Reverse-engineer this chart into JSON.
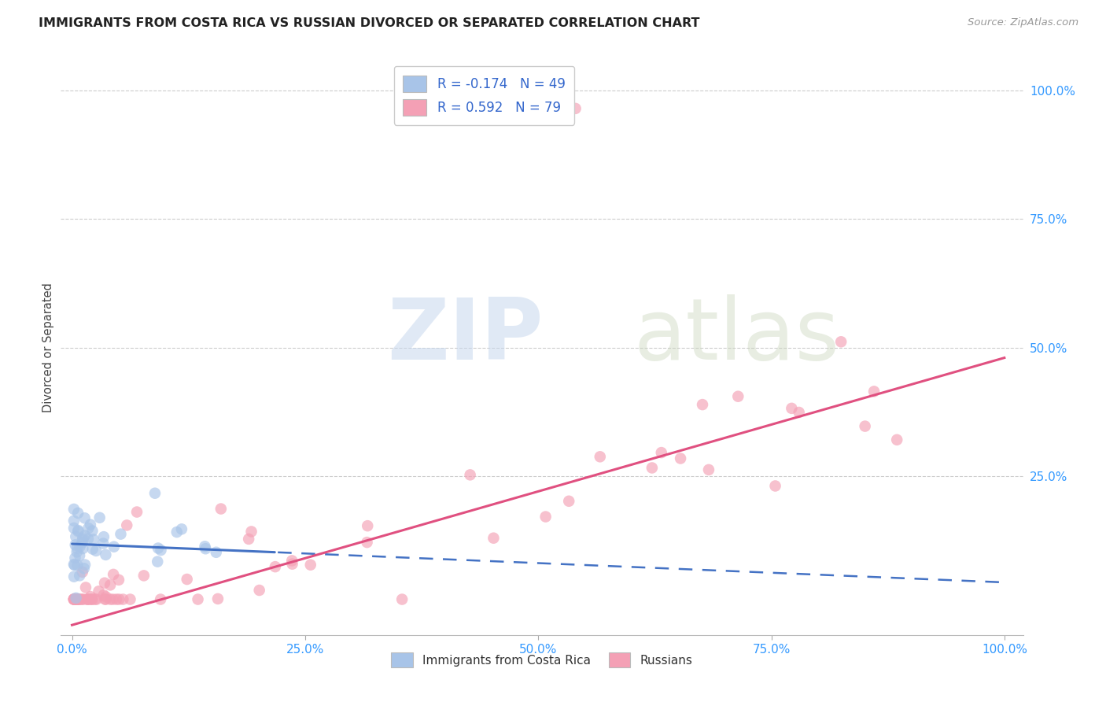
{
  "title": "IMMIGRANTS FROM COSTA RICA VS RUSSIAN DIVORCED OR SEPARATED CORRELATION CHART",
  "source": "Source: ZipAtlas.com",
  "ylabel": "Divorced or Separated",
  "legend_label_1": "Immigrants from Costa Rica",
  "legend_label_2": "Russians",
  "r1": "-0.174",
  "n1": "49",
  "r2": "0.592",
  "n2": "79",
  "color_blue": "#a8c4e8",
  "color_pink": "#f4a0b5",
  "line_blue": "#4472c4",
  "line_pink": "#e05080",
  "background": "#ffffff",
  "blue_intercept": 0.118,
  "blue_slope": -0.075,
  "pink_intercept": -0.04,
  "pink_slope": 0.52
}
